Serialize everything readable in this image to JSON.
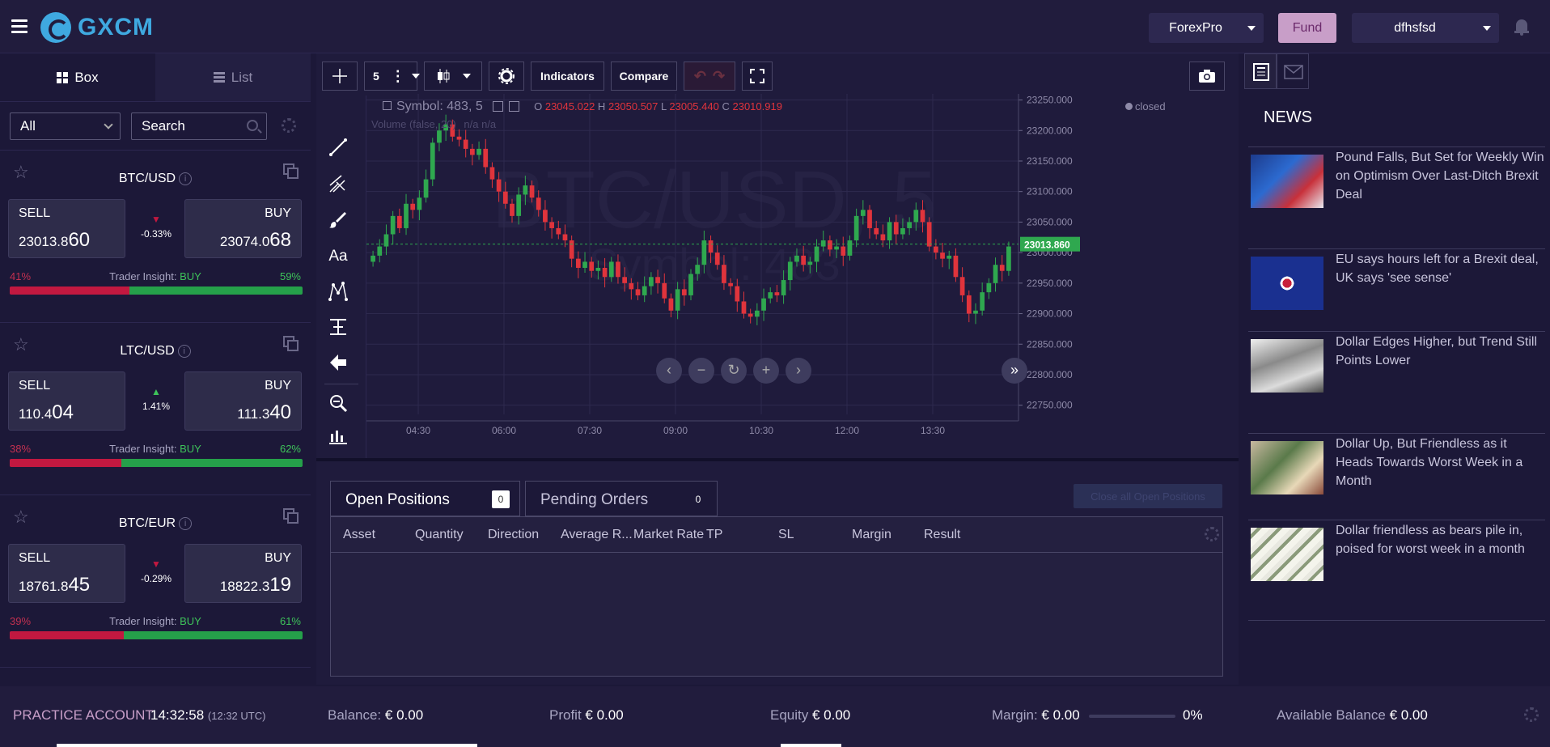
{
  "header": {
    "logo_text": "GXCM",
    "account_select": "ForexPro",
    "fund_label": "Fund",
    "user_select": "dfhsfsd"
  },
  "sidebar": {
    "tab_box": "Box",
    "tab_list": "List",
    "filter_value": "All",
    "search_placeholder": "Search",
    "instruments": [
      {
        "pair": "BTC/USD",
        "sell_label": "SELL",
        "sell_main": "23013.8",
        "sell_big": "60",
        "buy_label": "BUY",
        "buy_main": "23074.0",
        "buy_big": "68",
        "change": "-0.33%",
        "direction": "down",
        "sell_pct_label": "41%",
        "buy_pct_label": "59%",
        "sell_pct": 41,
        "insight_label": "Trader Insight:",
        "insight_value": "BUY"
      },
      {
        "pair": "LTC/USD",
        "sell_label": "SELL",
        "sell_main": "110.4",
        "sell_big": "04",
        "buy_label": "BUY",
        "buy_main": "111.3",
        "buy_big": "40",
        "change": "1.41%",
        "direction": "up",
        "sell_pct_label": "38%",
        "buy_pct_label": "62%",
        "sell_pct": 38,
        "insight_label": "Trader Insight:",
        "insight_value": "BUY"
      },
      {
        "pair": "BTC/EUR",
        "sell_label": "SELL",
        "sell_main": "18761.8",
        "sell_big": "45",
        "buy_label": "BUY",
        "buy_main": "18822.3",
        "buy_big": "19",
        "change": "-0.29%",
        "direction": "down",
        "sell_pct_label": "39%",
        "buy_pct_label": "61%",
        "sell_pct": 39,
        "insight_label": "Trader Insight:",
        "insight_value": "BUY"
      }
    ]
  },
  "chart": {
    "interval": "5",
    "indicators_label": "Indicators",
    "compare_label": "Compare",
    "legend_symbol": "Symbol: 483, 5",
    "ohlc": {
      "o_label": "O",
      "o": "23045.022",
      "h_label": "H",
      "h": "23050.507",
      "l_label": "L",
      "l": "23005.440",
      "c_label": "C",
      "c": "23010.919"
    },
    "volume_label": "Volume (false, 20)",
    "volume_values": "n/a  n/a",
    "status": "closed",
    "watermark_main": "BTC/USD, 5",
    "watermark_sub": "Symbol: 483",
    "last_price_tag": "23013.860",
    "colors": {
      "up": "#2fa84f",
      "down": "#e0343c",
      "last": "#2fa84f"
    }
  },
  "chart_data": {
    "type": "candlestick",
    "title": "BTC/USD, 5",
    "x_ticks": [
      "04:30",
      "06:00",
      "07:30",
      "09:00",
      "10:30",
      "12:00",
      "13:30"
    ],
    "y_ticks": [
      "23250.000",
      "23200.000",
      "23150.000",
      "23100.000",
      "23050.000",
      "23000.000",
      "22950.000",
      "22900.000",
      "22850.000",
      "22800.000",
      "22750.000"
    ],
    "ylim": [
      22735,
      23260
    ],
    "last_price": 23013.86,
    "close_series": [
      22995,
      23010,
      23030,
      23060,
      23040,
      23080,
      23070,
      23090,
      23120,
      23180,
      23200,
      23210,
      23190,
      23185,
      23170,
      23160,
      23170,
      23140,
      23120,
      23100,
      23080,
      23060,
      23095,
      23110,
      23090,
      23070,
      23050,
      23040,
      23030,
      23020,
      22990,
      22975,
      22985,
      22970,
      22975,
      22960,
      22985,
      22960,
      22950,
      22940,
      22930,
      22945,
      22960,
      22950,
      22925,
      22905,
      22940,
      22930,
      22965,
      22980,
      23020,
      23000,
      22980,
      22950,
      22945,
      22920,
      22900,
      22895,
      22905,
      22925,
      22935,
      22930,
      22955,
      22985,
      22995,
      22980,
      22985,
      23010,
      23020,
      23005,
      23010,
      22995,
      23020,
      23060,
      23070,
      23040,
      23030,
      23020,
      23050,
      23030,
      23040,
      23050,
      23070,
      23050,
      23010,
      23000,
      22990,
      22995,
      22960,
      22930,
      22900,
      22905,
      22935,
      22950,
      22980,
      22970,
      23010
    ]
  },
  "positions": {
    "tab_open": "Open Positions",
    "open_count": "0",
    "tab_pending": "Pending Orders",
    "pending_count": "0",
    "close_all": "Close all Open Positions",
    "columns": [
      "Asset",
      "Quantity",
      "Direction",
      "Average R...",
      "Market Rate",
      "TP",
      "SL",
      "Margin",
      "Result"
    ]
  },
  "news": {
    "title": "NEWS",
    "items": [
      {
        "headline": "Pound Falls, But Set for Weekly Win on Optimism Over Last-Ditch Brexit Deal",
        "image": "flags-protest-image"
      },
      {
        "headline": "EU says hours left for a Brexit deal, UK says 'see sense'",
        "image": "eu-uk-flag-image"
      },
      {
        "headline": "Dollar Edges Higher, but Trend Still Points Lower",
        "image": "dollar-bills-image"
      },
      {
        "headline": "Dollar Up, But Friendless as it Heads Towards Worst Week in a Month",
        "image": "dollar-hand-image"
      },
      {
        "headline": "Dollar friendless as bears pile in, poised for worst week in a month",
        "image": "dollar-stack-image"
      }
    ]
  },
  "footer": {
    "account_type": "PRACTICE ACCOUNT",
    "time": "14:32:58",
    "utc": "(12:32 UTC)",
    "balance_label": "Balance:",
    "balance": "€ 0.00",
    "profit_label": "Profit",
    "profit": "€ 0.00",
    "equity_label": "Equity",
    "equity": "€ 0.00",
    "margin_label": "Margin:",
    "margin": "€ 0.00",
    "margin_pct": "0%",
    "available_label": "Available Balance",
    "available": "€ 0.00"
  }
}
